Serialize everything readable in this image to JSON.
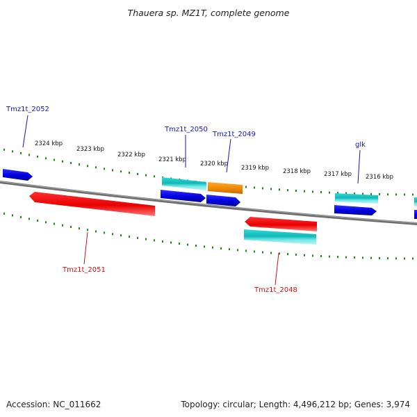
{
  "title": "Thauera sp. MZ1T, complete genome",
  "scale_ticks": [
    "2324 kbp",
    "2323 kbp",
    "2322 kbp",
    "2321 kbp",
    "2320 kbp",
    "2319 kbp",
    "2318 kbp",
    "2317 kbp",
    "2316 kbp"
  ],
  "genes": {
    "tmz1t_2052": "Tmz1t_2052",
    "tmz1t_2050": "Tmz1t_2050",
    "tmz1t_2049": "Tmz1t_2049",
    "glk": "glk",
    "tmz1t_2051": "Tmz1t_2051",
    "tmz1t_2048": "Tmz1t_2048"
  },
  "footer": {
    "accession": "Accession: NC_011662",
    "summary": "Topology: circular; Length: 4,496,212 bp; Genes: 3,974"
  },
  "colors": {
    "forward_cds": "#0a0ae6",
    "reverse_cds": "#e61414",
    "rna_feature": "#14c8c8",
    "other_feature": "#f08c0a",
    "backbone": "#808080",
    "tick_marks": "#228b22"
  }
}
